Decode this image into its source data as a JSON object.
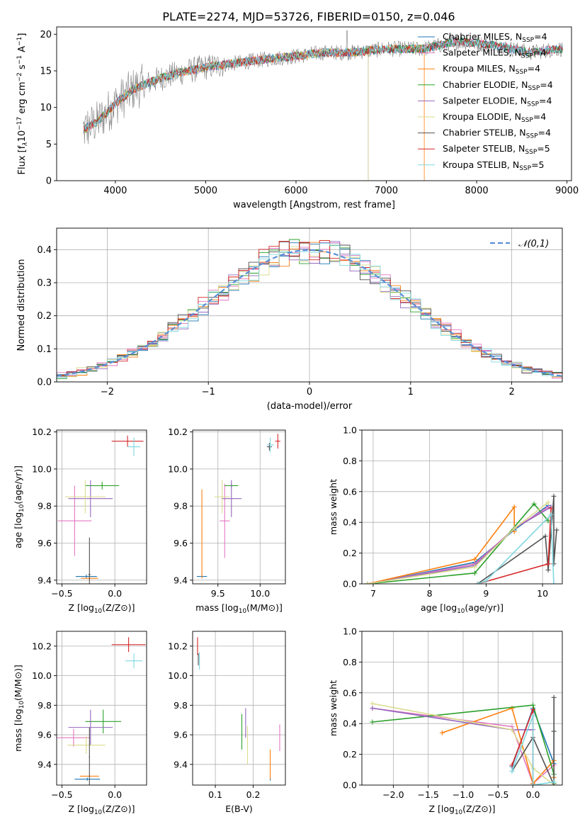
{
  "figure": {
    "title": "PLATE=2274, MJD=53726, FIBERID=0150, z=0.046",
    "colors": {
      "Chabrier MILES": "#1f77b4",
      "Salpeter MILES": "#e377c2",
      "Kroupa MILES": "#ff7f0e",
      "Chabrier ELODIE": "#2ca02c",
      "Salpeter ELODIE": "#9467bd",
      "Kroupa ELODIE": "#dbdb8d",
      "Chabrier STELIB": "#505050",
      "Salpeter STELIB": "#d62728",
      "Kroupa STELIB": "#7fd7df",
      "gaussian": "#5b8fd6",
      "spectrum": "#808080",
      "grid": "#b0b0b0"
    }
  },
  "chart_data": [
    {
      "id": "spectrum",
      "type": "line",
      "title": "PLATE=2274, MJD=53726, FIBERID=0150, z=0.046",
      "xlabel": "wavelength [Angstrom, rest frame]",
      "ylabel": "Flux [f_λ10^-17 erg cm^-2 s^-1 A^-1]",
      "xlim": [
        3350,
        9050
      ],
      "ylim": [
        0,
        21
      ],
      "xticks": [
        4000,
        5000,
        6000,
        7000,
        8000,
        9000
      ],
      "yticks": [
        0,
        5,
        10,
        15,
        20
      ],
      "grid": false,
      "legend_position": "right",
      "legend": [
        {
          "base": "Chabrier MILES, N",
          "sub": "SSP",
          "tail": "=4",
          "color": "#1f77b4"
        },
        {
          "base": "Salpeter MILES, N",
          "sub": "SSP",
          "tail": "=4",
          "color": "#e377c2"
        },
        {
          "base": "Kroupa MILES, N",
          "sub": "SSP",
          "tail": "=4",
          "color": "#ff7f0e"
        },
        {
          "base": "Chabrier ELODIE, N",
          "sub": "SSP",
          "tail": "=4",
          "color": "#2ca02c"
        },
        {
          "base": "Salpeter ELODIE, N",
          "sub": "SSP",
          "tail": "=4",
          "color": "#9467bd"
        },
        {
          "base": "Kroupa ELODIE, N",
          "sub": "SSP",
          "tail": "=4",
          "color": "#dbdb8d"
        },
        {
          "base": "Chabrier STELIB, N",
          "sub": "SSP",
          "tail": "=4",
          "color": "#505050"
        },
        {
          "base": "Salpeter STELIB, N",
          "sub": "SSP",
          "tail": "=5",
          "color": "#d62728"
        },
        {
          "base": "Kroupa STELIB, N",
          "sub": "SSP",
          "tail": "=5",
          "color": "#7fd7df"
        }
      ],
      "data_trend": {
        "x": [
          3650,
          3800,
          4000,
          4200,
          4500,
          4800,
          5000,
          5300,
          5600,
          6000,
          6300,
          6600,
          7000,
          7400,
          7800,
          8200,
          8600,
          8900
        ],
        "y": [
          7,
          8,
          10.5,
          12.5,
          14,
          15,
          15.5,
          16,
          16.5,
          17,
          17.5,
          17.5,
          18,
          18,
          19,
          18.5,
          17.5,
          18
        ]
      },
      "model_cutoffs": {
        "Kroupa ELODIE": [
          3900,
          6800
        ],
        "Salpeter ELODIE": [
          3650,
          6800
        ],
        "Kroupa MILES": [
          3650,
          7420
        ]
      }
    },
    {
      "id": "residuals",
      "type": "histogram",
      "xlabel": "(data-model)/error",
      "ylabel": "Normed distribution",
      "xlim": [
        -2.5,
        2.5
      ],
      "ylim": [
        0,
        0.465
      ],
      "xticks": [
        -2,
        -1,
        0,
        1,
        2
      ],
      "yticks": [
        0.0,
        0.1,
        0.2,
        0.3,
        0.4
      ],
      "grid": true,
      "legend_position": "top-right",
      "legend": [
        {
          "label": "𝒩(0,1)",
          "color": "#5b8fd6",
          "dashed": true
        }
      ],
      "bin_width": 0.1,
      "gaussian": {
        "mean": 0,
        "sigma": 1
      }
    },
    {
      "id": "age_vs_Z",
      "type": "errorbar",
      "xlabel_base": "Z [log",
      "xlabel_sub": "10",
      "xlabel_tail": "(Z/Z⊙)]",
      "ylabel_base": "age  [log",
      "ylabel_sub": "10",
      "ylabel_tail": "(age/yr)]",
      "xlim": [
        -0.55,
        0.3
      ],
      "ylim": [
        9.38,
        10.21
      ],
      "xticks": [
        -0.5,
        0.0
      ],
      "yticks": [
        9.4,
        9.6,
        9.8,
        10.0,
        10.2
      ],
      "grid": true,
      "points": [
        {
          "model": "Chabrier MILES",
          "x": -0.27,
          "y": 9.42,
          "xerr": 0.1,
          "yerr": 0.01
        },
        {
          "model": "Salpeter MILES",
          "x": -0.38,
          "y": 9.72,
          "xerr": 0.16,
          "yerr": 0.19
        },
        {
          "model": "Kroupa MILES",
          "x": -0.24,
          "y": 9.41,
          "xerr": 0.08,
          "yerr": 0.01
        },
        {
          "model": "Chabrier ELODIE",
          "x": -0.12,
          "y": 9.91,
          "xerr": 0.16,
          "yerr": 0.02
        },
        {
          "model": "Salpeter ELODIE",
          "x": -0.23,
          "y": 9.84,
          "xerr": 0.21,
          "yerr": 0.1
        },
        {
          "model": "Kroupa ELODIE",
          "x": -0.28,
          "y": 9.85,
          "xerr": 0.19,
          "yerr": 0.09
        },
        {
          "model": "Chabrier STELIB",
          "x": -0.24,
          "y": 9.43,
          "xerr": 0.01,
          "yerr": 0.2
        },
        {
          "model": "Salpeter STELIB",
          "x": 0.12,
          "y": 10.15,
          "xerr": 0.15,
          "yerr": 0.03
        },
        {
          "model": "Kroupa STELIB",
          "x": 0.18,
          "y": 10.12,
          "xerr": 0.06,
          "yerr": 0.05
        }
      ]
    },
    {
      "id": "age_vs_mass",
      "type": "errorbar",
      "xlabel_base": "mass [log",
      "xlabel_sub": "10",
      "xlabel_tail": "(M/M⊙)]",
      "ylabel_base": "",
      "ylabel_sub": "",
      "ylabel_tail": "",
      "xlim": [
        9.2,
        10.3
      ],
      "ylim": [
        9.38,
        10.21
      ],
      "xticks": [
        9.5,
        10.0
      ],
      "yticks": [
        9.4,
        9.6,
        9.8,
        10.0,
        10.2
      ],
      "grid": true,
      "points": [
        {
          "model": "Chabrier MILES",
          "x": 9.31,
          "y": 9.42,
          "xerr": 0.06,
          "yerr": 0.01
        },
        {
          "model": "Salpeter MILES",
          "x": 9.58,
          "y": 9.72,
          "xerr": 0.06,
          "yerr": 0.2
        },
        {
          "model": "Kroupa MILES",
          "x": 9.31,
          "y": 9.65,
          "xerr": 0.005,
          "yerr": 0.24
        },
        {
          "model": "Chabrier ELODIE",
          "x": 9.66,
          "y": 9.91,
          "xerr": 0.08,
          "yerr": 0.01
        },
        {
          "model": "Salpeter ELODIE",
          "x": 9.66,
          "y": 9.84,
          "xerr": 0.12,
          "yerr": 0.1
        },
        {
          "model": "Kroupa ELODIE",
          "x": 9.55,
          "y": 9.85,
          "xerr": 0.09,
          "yerr": 0.09
        },
        {
          "model": "Chabrier STELIB",
          "x": 10.11,
          "y": 10.12,
          "xerr": 0.03,
          "yerr": 0.02
        },
        {
          "model": "Salpeter STELIB",
          "x": 10.21,
          "y": 10.15,
          "xerr": 0.03,
          "yerr": 0.04
        },
        {
          "model": "Kroupa STELIB",
          "x": 10.12,
          "y": 10.13,
          "xerr": 0.04,
          "yerr": 0.04
        }
      ]
    },
    {
      "id": "weight_vs_age",
      "type": "line",
      "xlabel_base": "age  [log",
      "xlabel_sub": "10",
      "xlabel_tail": "(age/yr)]",
      "ylabel": "mass weight",
      "xlim": [
        6.8,
        10.35
      ],
      "ylim": [
        0,
        1
      ],
      "xticks": [
        7,
        8,
        9,
        10
      ],
      "yticks": [
        0.0,
        0.2,
        0.4,
        0.6,
        0.8,
        1.0
      ],
      "grid": true,
      "series": [
        {
          "model": "Chabrier MILES",
          "x": [
            6.9,
            8.8,
            9.5,
            10.1
          ],
          "y": [
            0.0,
            0.14,
            0.35,
            0.51
          ]
        },
        {
          "model": "Salpeter MILES",
          "x": [
            6.9,
            8.8,
            9.5,
            10.1
          ],
          "y": [
            0.0,
            0.13,
            0.36,
            0.5
          ]
        },
        {
          "model": "Kroupa MILES",
          "x": [
            6.9,
            8.8,
            9.5,
            9.5
          ],
          "y": [
            0.0,
            0.16,
            0.5,
            0.34
          ]
        },
        {
          "model": "Chabrier ELODIE",
          "x": [
            6.9,
            8.8,
            9.85,
            10.1
          ],
          "y": [
            0.0,
            0.07,
            0.52,
            0.41
          ]
        },
        {
          "model": "Salpeter ELODIE",
          "x": [
            6.9,
            8.8,
            9.5,
            10.15
          ],
          "y": [
            0.0,
            0.12,
            0.36,
            0.5
          ]
        },
        {
          "model": "Kroupa ELODIE",
          "x": [
            6.9,
            8.8,
            9.5,
            10.1
          ],
          "y": [
            0.0,
            0.11,
            0.36,
            0.53
          ]
        },
        {
          "model": "Chabrier STELIB",
          "x": [
            8.85,
            10.05,
            10.1,
            10.2,
            10.2,
            10.25
          ],
          "y": [
            0.0,
            0.31,
            0.09,
            0.57,
            0.13,
            0.35
          ]
        },
        {
          "model": "Salpeter STELIB",
          "x": [
            8.85,
            10.1,
            10.15
          ],
          "y": [
            0.0,
            0.13,
            0.49
          ]
        },
        {
          "model": "Kroupa STELIB",
          "x": [
            8.85,
            9.0,
            10.15,
            10.2
          ],
          "y": [
            0.0,
            0.02,
            0.45,
            0.0
          ]
        }
      ]
    },
    {
      "id": "mass_vs_Z",
      "type": "errorbar",
      "xlabel_base": "Z [log",
      "xlabel_sub": "10",
      "xlabel_tail": "(Z/Z⊙)]",
      "ylabel_base": "mass [log",
      "ylabel_sub": "10",
      "ylabel_tail": "(M/M⊙)]",
      "xlim": [
        -0.55,
        0.3
      ],
      "ylim": [
        9.26,
        10.3
      ],
      "xticks": [
        -0.5,
        0.0
      ],
      "yticks": [
        9.4,
        9.6,
        9.8,
        10.0,
        10.2
      ],
      "grid": true,
      "points": [
        {
          "model": "Chabrier MILES",
          "x": -0.26,
          "y": 9.3,
          "xerr": 0.12,
          "yerr": 0.01
        },
        {
          "model": "Salpeter MILES",
          "x": -0.39,
          "y": 9.58,
          "xerr": 0.16,
          "yerr": 0.06
        },
        {
          "model": "Kroupa MILES",
          "x": -0.24,
          "y": 9.32,
          "xerr": 0.09,
          "yerr": 0.005
        },
        {
          "model": "Chabrier ELODIE",
          "x": -0.11,
          "y": 9.69,
          "xerr": 0.17,
          "yerr": 0.08
        },
        {
          "model": "Salpeter ELODIE",
          "x": -0.23,
          "y": 9.65,
          "xerr": 0.21,
          "yerr": 0.12
        },
        {
          "model": "Kroupa ELODIE",
          "x": -0.27,
          "y": 9.53,
          "xerr": 0.18,
          "yerr": 0.06
        },
        {
          "model": "Chabrier STELIB",
          "x": -0.24,
          "y": 9.45,
          "xerr": 0.005,
          "yerr": 0.2
        },
        {
          "model": "Salpeter STELIB",
          "x": 0.13,
          "y": 10.21,
          "xerr": 0.16,
          "yerr": 0.05
        },
        {
          "model": "Kroupa STELIB",
          "x": 0.18,
          "y": 10.1,
          "xerr": 0.08,
          "yerr": 0.05
        }
      ]
    },
    {
      "id": "mass_vs_ebv",
      "type": "errorbar",
      "xlabel_base": "E(B-V)",
      "xlabel_sub": "",
      "xlabel_tail": "",
      "ylabel_base": "",
      "ylabel_sub": "",
      "ylabel_tail": "",
      "xlim": [
        0.04,
        0.285
      ],
      "ylim": [
        9.26,
        10.3
      ],
      "xticks": [
        0.1,
        0.2
      ],
      "yticks": [
        9.4,
        9.6,
        9.8,
        10.0,
        10.2
      ],
      "grid": true,
      "points": [
        {
          "model": "Chabrier MILES",
          "x": 0.245,
          "y": 9.3,
          "xerr": 0.0,
          "yerr": 0.01
        },
        {
          "model": "Salpeter MILES",
          "x": 0.27,
          "y": 9.58,
          "xerr": 0.0,
          "yerr": 0.09
        },
        {
          "model": "Kroupa MILES",
          "x": 0.245,
          "y": 9.4,
          "xerr": 0.0,
          "yerr": 0.1
        },
        {
          "model": "Chabrier ELODIE",
          "x": 0.17,
          "y": 9.62,
          "xerr": 0.0,
          "yerr": 0.12
        },
        {
          "model": "Salpeter ELODIE",
          "x": 0.18,
          "y": 9.68,
          "xerr": 0.0,
          "yerr": 0.1
        },
        {
          "model": "Kroupa ELODIE",
          "x": 0.185,
          "y": 9.53,
          "xerr": 0.0,
          "yerr": 0.13
        },
        {
          "model": "Chabrier STELIB",
          "x": 0.055,
          "y": 10.11,
          "xerr": 0.0,
          "yerr": 0.04
        },
        {
          "model": "Salpeter STELIB",
          "x": 0.053,
          "y": 10.2,
          "xerr": 0.0,
          "yerr": 0.06
        },
        {
          "model": "Kroupa STELIB",
          "x": 0.058,
          "y": 10.1,
          "xerr": 0.0,
          "yerr": 0.06
        }
      ]
    },
    {
      "id": "weight_vs_Z",
      "type": "line",
      "xlabel_base": "Z [log",
      "xlabel_sub": "10",
      "xlabel_tail": "(Z/Z⊙)]",
      "ylabel": "mass weight",
      "xlim": [
        -2.45,
        0.42
      ],
      "ylim": [
        0,
        1
      ],
      "xticks": [
        -2.0,
        -1.5,
        -1.0,
        -0.5,
        0.0
      ],
      "yticks": [
        0.0,
        0.2,
        0.4,
        0.6,
        0.8,
        1.0
      ],
      "grid": true,
      "series": [
        {
          "model": "Chabrier MILES",
          "x": [
            -0.3,
            0.0,
            0.3,
            0.3
          ],
          "y": [
            0.12,
            0.5,
            0.14,
            0.35
          ]
        },
        {
          "model": "Salpeter MILES",
          "x": [
            -2.3,
            -0.3,
            0.0,
            0.3
          ],
          "y": [
            0.5,
            0.38,
            0.01,
            0.13
          ]
        },
        {
          "model": "Kroupa MILES",
          "x": [
            -1.3,
            -0.3,
            0.0,
            0.3,
            0.3
          ],
          "y": [
            0.34,
            0.5,
            0.01,
            0.16,
            0.05
          ]
        },
        {
          "model": "Chabrier ELODIE",
          "x": [
            -2.3,
            0.0,
            0.3,
            0.3
          ],
          "y": [
            0.41,
            0.52,
            0.07,
            0.01
          ]
        },
        {
          "model": "Salpeter ELODIE",
          "x": [
            -2.3,
            -0.3,
            0.0
          ],
          "y": [
            0.5,
            0.36,
            0.36
          ]
        },
        {
          "model": "Kroupa ELODIE",
          "x": [
            -2.3,
            -0.3,
            0.0,
            0.3
          ],
          "y": [
            0.53,
            0.36,
            0.11,
            0.0
          ]
        },
        {
          "model": "Chabrier STELIB",
          "x": [
            -0.3,
            0.0,
            0.3,
            0.3,
            0.3
          ],
          "y": [
            0.09,
            0.31,
            0.0,
            0.57,
            0.35
          ]
        },
        {
          "model": "Salpeter STELIB",
          "x": [
            -0.3,
            0.0,
            0.0
          ],
          "y": [
            0.13,
            0.49,
            0.0
          ]
        },
        {
          "model": "Kroupa STELIB",
          "x": [
            -0.3,
            0.0,
            0.0,
            0.3
          ],
          "y": [
            0.09,
            0.45,
            0.0,
            0.02
          ]
        }
      ]
    }
  ]
}
